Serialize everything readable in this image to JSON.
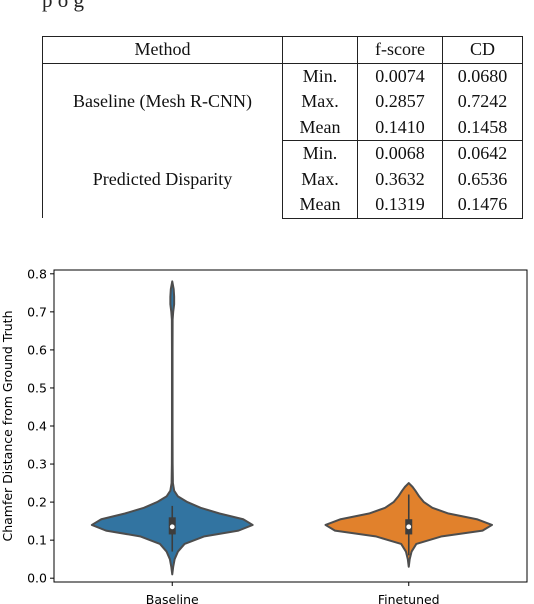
{
  "snippet_text": "p     o    g",
  "table": {
    "headers": {
      "method": "Method",
      "stat": "",
      "fscore": "f-score",
      "cd": "CD"
    },
    "groups": [
      {
        "method": "Baseline (Mesh R-CNN)",
        "rows": [
          {
            "stat": "Min.",
            "fscore": "0.0074",
            "fscore_bold": true,
            "cd": "0.0680",
            "cd_bold": false
          },
          {
            "stat": "Max.",
            "fscore": "0.2857",
            "fscore_bold": false,
            "cd": "0.7242",
            "cd_bold": false
          },
          {
            "stat": "Mean",
            "fscore": "0.1410",
            "fscore_bold": true,
            "cd": "0.1458",
            "cd_bold": true
          }
        ]
      },
      {
        "method": "Predicted Disparity",
        "rows": [
          {
            "stat": "Min.",
            "fscore": "0.0068",
            "fscore_bold": false,
            "cd": "0.0642",
            "cd_bold": true
          },
          {
            "stat": "Max.",
            "fscore": "0.3632",
            "fscore_bold": true,
            "cd": "0.6536",
            "cd_bold": true
          },
          {
            "stat": "Mean",
            "fscore": "0.1319",
            "fscore_bold": false,
            "cd": "0.1476",
            "cd_bold": false
          }
        ]
      }
    ]
  },
  "chart_data": {
    "type": "violin",
    "ylabel": "Chamfer Distance from Ground Truth",
    "xlabel": "",
    "ylim": [
      -0.01,
      0.81
    ],
    "yticks": [
      0.0,
      0.1,
      0.2,
      0.3,
      0.4,
      0.5,
      0.6,
      0.7,
      0.8
    ],
    "ytick_labels": [
      "0.0",
      "0.1",
      "0.2",
      "0.3",
      "0.4",
      "0.5",
      "0.6",
      "0.7",
      "0.8"
    ],
    "categories": [
      "Baseline",
      "Finetuned"
    ],
    "series": [
      {
        "category": "Baseline",
        "color": "#3274a1",
        "min": 0.01,
        "q1": 0.115,
        "median": 0.135,
        "q3": 0.16,
        "whisker_low": 0.07,
        "whisker_high": 0.19,
        "max": 0.78,
        "profile": [
          [
            0.01,
            0.0
          ],
          [
            0.03,
            0.01
          ],
          [
            0.05,
            0.025
          ],
          [
            0.07,
            0.06
          ],
          [
            0.09,
            0.13
          ],
          [
            0.11,
            0.34
          ],
          [
            0.125,
            0.7
          ],
          [
            0.14,
            0.85
          ],
          [
            0.155,
            0.75
          ],
          [
            0.17,
            0.5
          ],
          [
            0.185,
            0.3
          ],
          [
            0.2,
            0.16
          ],
          [
            0.215,
            0.06
          ],
          [
            0.23,
            0.02
          ],
          [
            0.25,
            0.007
          ],
          [
            0.3,
            0.004
          ],
          [
            0.4,
            0.003
          ],
          [
            0.5,
            0.003
          ],
          [
            0.6,
            0.003
          ],
          [
            0.68,
            0.004
          ],
          [
            0.7,
            0.01
          ],
          [
            0.72,
            0.02
          ],
          [
            0.74,
            0.02
          ],
          [
            0.76,
            0.015
          ],
          [
            0.78,
            0.0
          ]
        ]
      },
      {
        "category": "Finetuned",
        "color": "#e1812c",
        "min": 0.03,
        "q1": 0.115,
        "median": 0.135,
        "q3": 0.155,
        "whisker_low": 0.06,
        "whisker_high": 0.22,
        "max": 0.25,
        "profile": [
          [
            0.03,
            0.0
          ],
          [
            0.05,
            0.01
          ],
          [
            0.07,
            0.03
          ],
          [
            0.09,
            0.08
          ],
          [
            0.11,
            0.35
          ],
          [
            0.125,
            0.78
          ],
          [
            0.14,
            0.88
          ],
          [
            0.155,
            0.72
          ],
          [
            0.17,
            0.42
          ],
          [
            0.185,
            0.25
          ],
          [
            0.2,
            0.16
          ],
          [
            0.215,
            0.11
          ],
          [
            0.23,
            0.07
          ],
          [
            0.24,
            0.04
          ],
          [
            0.25,
            0.0
          ]
        ]
      }
    ]
  }
}
